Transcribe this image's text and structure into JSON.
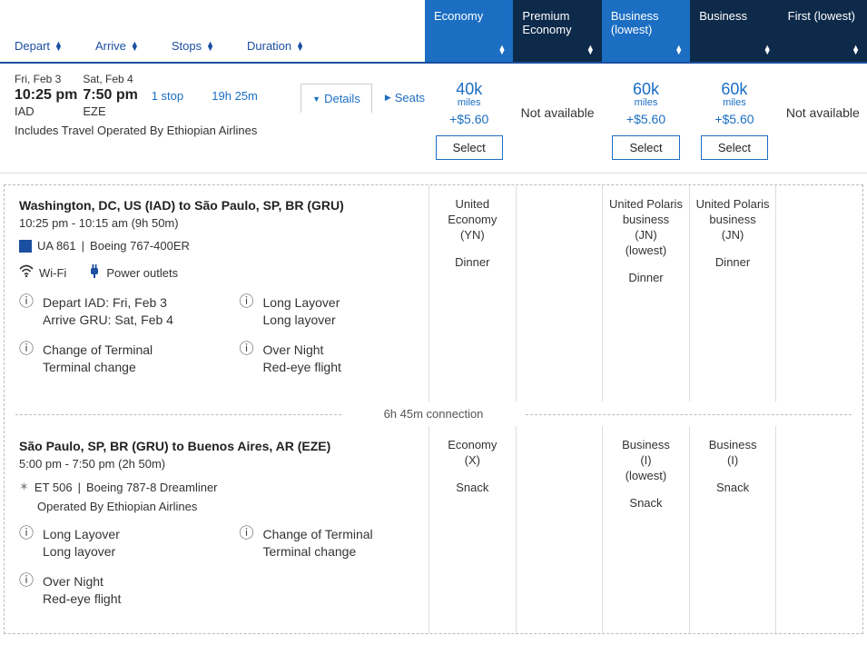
{
  "colors": {
    "primary_blue": "#1b6ec2",
    "dark_blue": "#0d2a4a",
    "border_blue": "#1b4fa0"
  },
  "sort": {
    "depart": "Depart",
    "arrive": "Arrive",
    "stops": "Stops",
    "duration": "Duration"
  },
  "fareHeaders": [
    {
      "label": "Economy",
      "style": "blue"
    },
    {
      "label": "Premium Economy",
      "style": "dark"
    },
    {
      "label": "Business (lowest)",
      "style": "blue"
    },
    {
      "label": "Business",
      "style": "dark"
    },
    {
      "label": "First (lowest)",
      "style": "dark"
    }
  ],
  "flight": {
    "depart_date": "Fri, Feb 3",
    "depart_time": "10:25 pm",
    "depart_code": "IAD",
    "arrive_date": "Sat, Feb 4",
    "arrive_time": "7:50 pm",
    "arrive_code": "EZE",
    "stops": "1 stop",
    "duration": "19h 25m",
    "details": "Details",
    "seats": "Seats",
    "includes": "Includes Travel Operated By Ethiopian Airlines"
  },
  "fares": [
    {
      "miles": "40k",
      "miles_label": "miles",
      "taxes": "+$5.60",
      "select": "Select",
      "available": true
    },
    {
      "not_available": "Not available",
      "available": false
    },
    {
      "miles": "60k",
      "miles_label": "miles",
      "taxes": "+$5.60",
      "select": "Select",
      "available": true
    },
    {
      "miles": "60k",
      "miles_label": "miles",
      "taxes": "+$5.60",
      "select": "Select",
      "available": true
    },
    {
      "not_available": "Not available",
      "available": false
    }
  ],
  "segments": [
    {
      "title": "Washington, DC, US (IAD) to São Paulo, SP, BR (GRU)",
      "time": "10:25 pm - 10:15 am (9h 50m)",
      "flight_no": "UA 861",
      "aircraft": "Boeing 767-400ER",
      "sep": " | ",
      "carrier_logo_bg": "#1b4fa0",
      "amenities": [
        {
          "icon": "wifi",
          "label": "Wi-Fi"
        },
        {
          "icon": "power",
          "label": "Power outlets"
        }
      ],
      "notices": [
        [
          {
            "line1": "Depart IAD: Fri, Feb 3",
            "line2": "Arrive GRU: Sat, Feb 4"
          },
          {
            "line1": "Long Layover",
            "line2": "Long layover"
          }
        ],
        [
          {
            "line1": "Change of Terminal",
            "line2": "Terminal change"
          },
          {
            "line1": "Over Night",
            "line2": "Red-eye flight"
          }
        ]
      ],
      "cabins": [
        {
          "name": "United Economy",
          "code": "(YN)",
          "meal": "Dinner"
        },
        {
          "empty": true
        },
        {
          "name": "United Polaris business",
          "code": "(JN)",
          "sub": "(lowest)",
          "meal": "Dinner"
        },
        {
          "name": "United Polaris business",
          "code": "(JN)",
          "meal": "Dinner"
        },
        {
          "empty": true
        }
      ]
    },
    {
      "title": "São Paulo, SP, BR (GRU) to Buenos Aires, AR (EZE)",
      "time": "5:00 pm - 7:50 pm (2h 50m)",
      "flight_no": "ET 506",
      "aircraft": "Boeing 787-8 Dreamliner",
      "sep": " | ",
      "star": true,
      "operated": "Operated By Ethiopian Airlines",
      "notices": [
        [
          {
            "line1": "Long Layover",
            "line2": "Long layover"
          },
          {
            "line1": "Change of Terminal",
            "line2": "Terminal change"
          }
        ],
        [
          {
            "line1": "Over Night",
            "line2": "Red-eye flight"
          }
        ]
      ],
      "cabins": [
        {
          "name": "Economy",
          "code": "(X)",
          "meal": "Snack"
        },
        {
          "empty": true
        },
        {
          "name": "Business",
          "code": "(I)",
          "sub": "(lowest)",
          "meal": "Snack"
        },
        {
          "name": "Business",
          "code": "(I)",
          "meal": "Snack"
        },
        {
          "empty": true
        }
      ]
    }
  ],
  "connection": "6h 45m connection"
}
